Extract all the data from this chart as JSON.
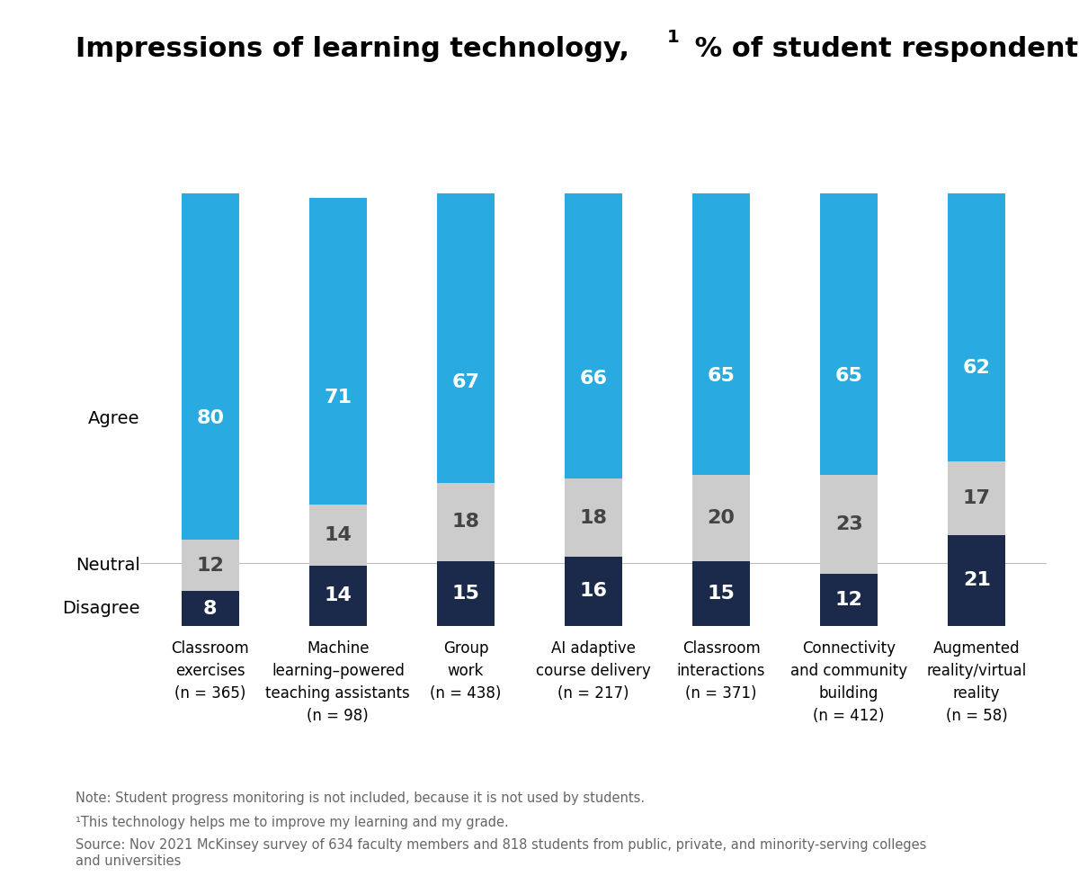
{
  "title_part1": "Impressions of learning technology,",
  "title_sup": "1",
  "title_part2": " % of student respondents",
  "categories": [
    "Classroom\nexercises\n(n = 365)",
    "Machine\nlearning–powered\nteaching assistants\n(n = 98)",
    "Group\nwork\n(n = 438)",
    "AI adaptive\ncourse delivery\n(n = 217)",
    "Classroom\ninteractions\n(n = 371)",
    "Connectivity\nand community\nbuilding\n(n = 412)",
    "Augmented\nreality/virtual\nreality\n(n = 58)"
  ],
  "agree": [
    80,
    71,
    67,
    66,
    65,
    65,
    62
  ],
  "neutral": [
    12,
    14,
    18,
    18,
    20,
    23,
    17
  ],
  "disagree": [
    8,
    14,
    15,
    16,
    15,
    12,
    21
  ],
  "agree_color": "#29ABE2",
  "neutral_color": "#CCCCCC",
  "disagree_color": "#1B2A4A",
  "note1": "Note: Student progress monitoring is not included, because it is not used by students.",
  "note2": "¹This technology helps me to improve my learning and my grade.",
  "note3": "Source: Nov 2021 McKinsey survey of 634 faculty members and 818 students from public, private, and minority-serving colleges\nand universities",
  "bar_width": 0.45,
  "title_fontsize": 22,
  "label_fontsize": 16,
  "tick_fontsize": 12,
  "note_fontsize": 10.5,
  "ylabel_fontsize": 14
}
